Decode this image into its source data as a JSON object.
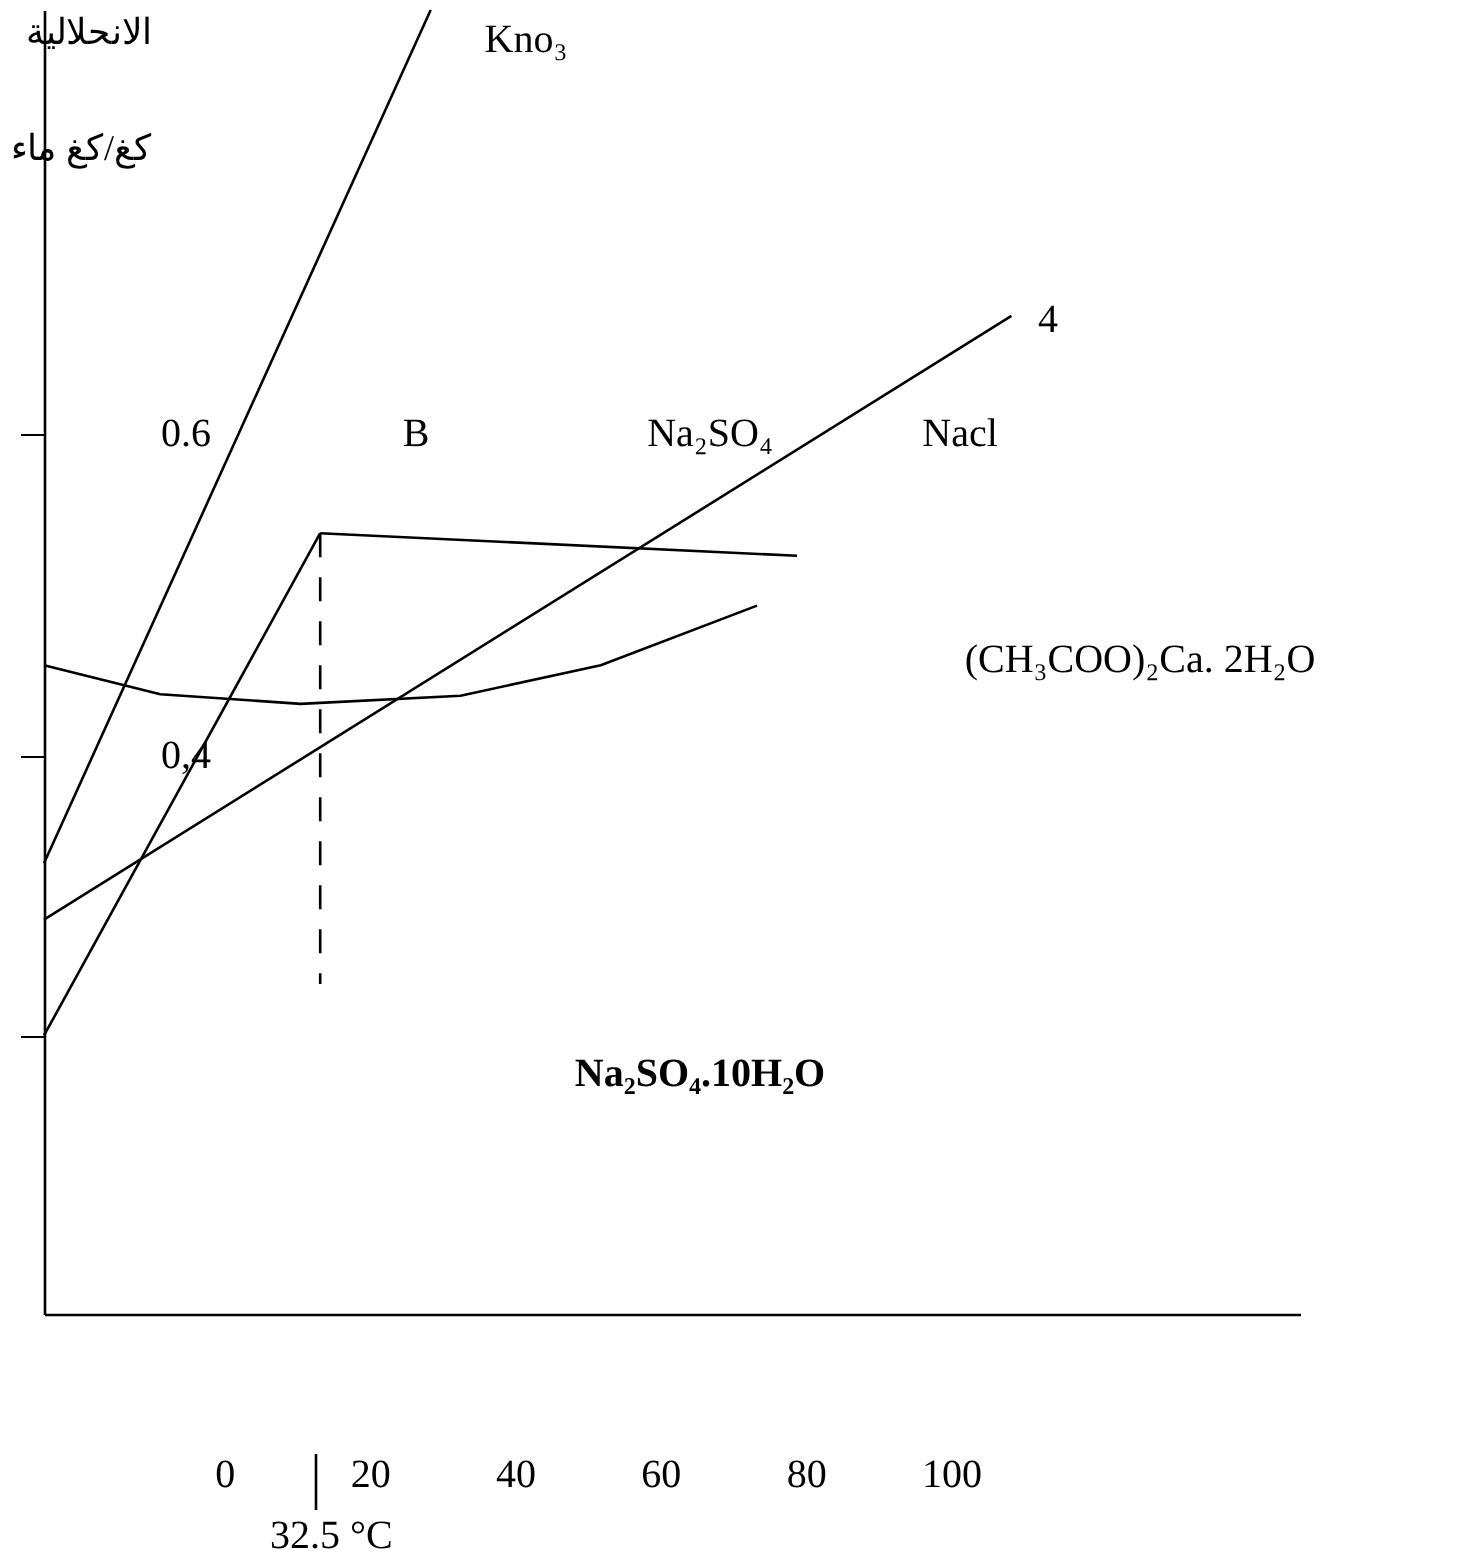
{
  "chart_data": {
    "type": "line",
    "ylabel": "الانحلالية\nكغ/كغ ماء",
    "xlim": [
      -24.8,
      148
    ],
    "ylim": [
      0.053,
      0.863
    ],
    "xticks": [
      0,
      20,
      40,
      60,
      80,
      100
    ],
    "yticks": [
      {
        "value": 0.6,
        "label": "0.6"
      },
      {
        "value": 0.4,
        "label": "0,4"
      },
      {
        "value": 0.226,
        "label": null
      }
    ],
    "grid": false,
    "marker": "none",
    "series": [
      {
        "color": "#000000",
        "x": [
          -24.8,
          28.4
        ],
        "values": [
          0.333,
          0.863
        ]
      },
      {
        "color": "#000000",
        "x": [
          -24.8,
          13.2
        ],
        "values": [
          0.226,
          0.538
        ]
      },
      {
        "color": "#000000",
        "x": [
          13.2,
          78.8
        ],
        "values": [
          0.538,
          0.524
        ]
      },
      {
        "color": "#000000",
        "x": [
          -24.8,
          108.3
        ],
        "values": [
          0.298,
          0.673
        ]
      },
      {
        "color": "#000000",
        "x": [
          -24.8,
          -8.8,
          10.5,
          32.5,
          51.8,
          73.3
        ],
        "values": [
          0.456,
          0.438,
          0.432,
          0.437,
          0.456,
          0.493
        ]
      },
      {
        "color": "#000000",
        "line_style": "dashed",
        "x": [
          13.2,
          13.2
        ],
        "values": [
          0.538,
          0.258
        ]
      }
    ],
    "annotations": [
      "Kno₃",
      "4",
      "B",
      "Na₂SO₄",
      "Nacl",
      "(CH₃COO)₂Ca. 2H₂O",
      "Na₂SO₄.10H₂O",
      "32.5 °C"
    ]
  }
}
